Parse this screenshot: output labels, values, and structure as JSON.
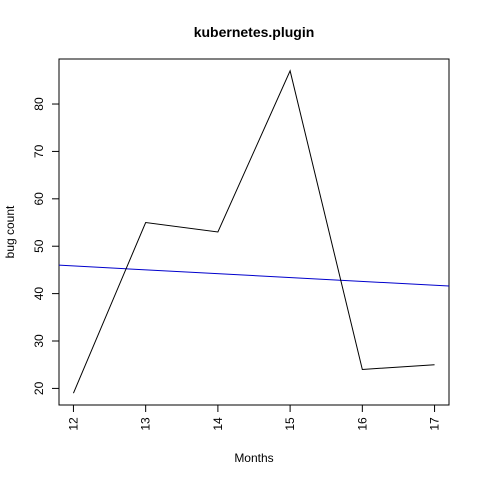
{
  "chart_data": {
    "type": "line",
    "title": "kubernetes.plugin",
    "xlabel": "Months",
    "ylabel": "bug count",
    "x": [
      12,
      13,
      14,
      15,
      16,
      17
    ],
    "series": [
      {
        "values": [
          19,
          55,
          53,
          87,
          24,
          25
        ],
        "color": "#000000"
      }
    ],
    "trend_line": {
      "start": [
        11.8,
        46
      ],
      "end": [
        17.2,
        41.6
      ],
      "color": "#0000cc"
    },
    "xlim": [
      11.8,
      17.2
    ],
    "ylim": [
      16.5,
      89.5
    ],
    "xticks": [
      "12",
      "13",
      "14",
      "15",
      "16",
      "17"
    ],
    "yticks": [
      "20",
      "30",
      "40",
      "50",
      "60",
      "70",
      "80"
    ],
    "grid": false,
    "legend": "none"
  }
}
